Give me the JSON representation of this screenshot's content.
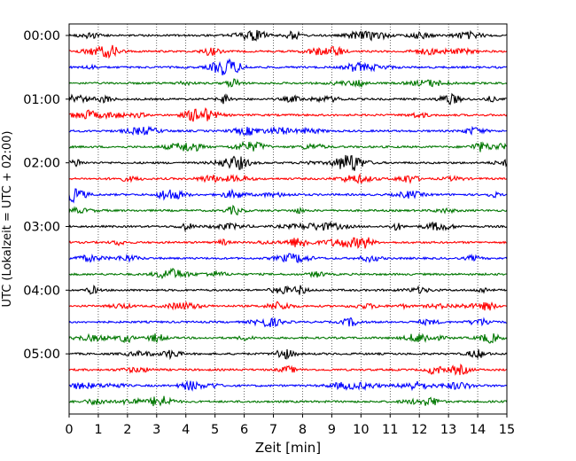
{
  "chart_data": {
    "type": "line",
    "xlabel": "Zeit  [min]",
    "ylabel": "UTC (Lokalzeit = UTC + 02:00)",
    "xlim": [
      0,
      15
    ],
    "x_ticks": [
      "0",
      "1",
      "2",
      "3",
      "4",
      "5",
      "6",
      "7",
      "8",
      "9",
      "10",
      "11",
      "12",
      "13",
      "14",
      "15"
    ],
    "y_tick_labels": [
      "00:00",
      "01:00",
      "02:00",
      "03:00",
      "04:00",
      "05:00"
    ],
    "grid": {
      "vertical": true,
      "style": "dotted"
    },
    "trace_colors": [
      "#000000",
      "#ff0000",
      "#0000ff",
      "#007700"
    ],
    "series": [
      {
        "start": "00:00",
        "color": "#000000"
      },
      {
        "start": "00:15",
        "color": "#ff0000"
      },
      {
        "start": "00:30",
        "color": "#0000ff"
      },
      {
        "start": "00:45",
        "color": "#007700"
      },
      {
        "start": "01:00",
        "color": "#000000"
      },
      {
        "start": "01:15",
        "color": "#ff0000"
      },
      {
        "start": "01:30",
        "color": "#0000ff"
      },
      {
        "start": "01:45",
        "color": "#007700"
      },
      {
        "start": "02:00",
        "color": "#000000"
      },
      {
        "start": "02:15",
        "color": "#ff0000"
      },
      {
        "start": "02:30",
        "color": "#0000ff"
      },
      {
        "start": "02:45",
        "color": "#007700"
      },
      {
        "start": "03:00",
        "color": "#000000"
      },
      {
        "start": "03:15",
        "color": "#ff0000"
      },
      {
        "start": "03:30",
        "color": "#0000ff"
      },
      {
        "start": "03:45",
        "color": "#007700"
      },
      {
        "start": "04:00",
        "color": "#000000"
      },
      {
        "start": "04:15",
        "color": "#ff0000"
      },
      {
        "start": "04:30",
        "color": "#0000ff"
      },
      {
        "start": "04:45",
        "color": "#007700"
      },
      {
        "start": "05:00",
        "color": "#000000"
      },
      {
        "start": "05:15",
        "color": "#ff0000"
      },
      {
        "start": "05:30",
        "color": "#0000ff"
      },
      {
        "start": "05:45",
        "color": "#007700"
      }
    ]
  }
}
